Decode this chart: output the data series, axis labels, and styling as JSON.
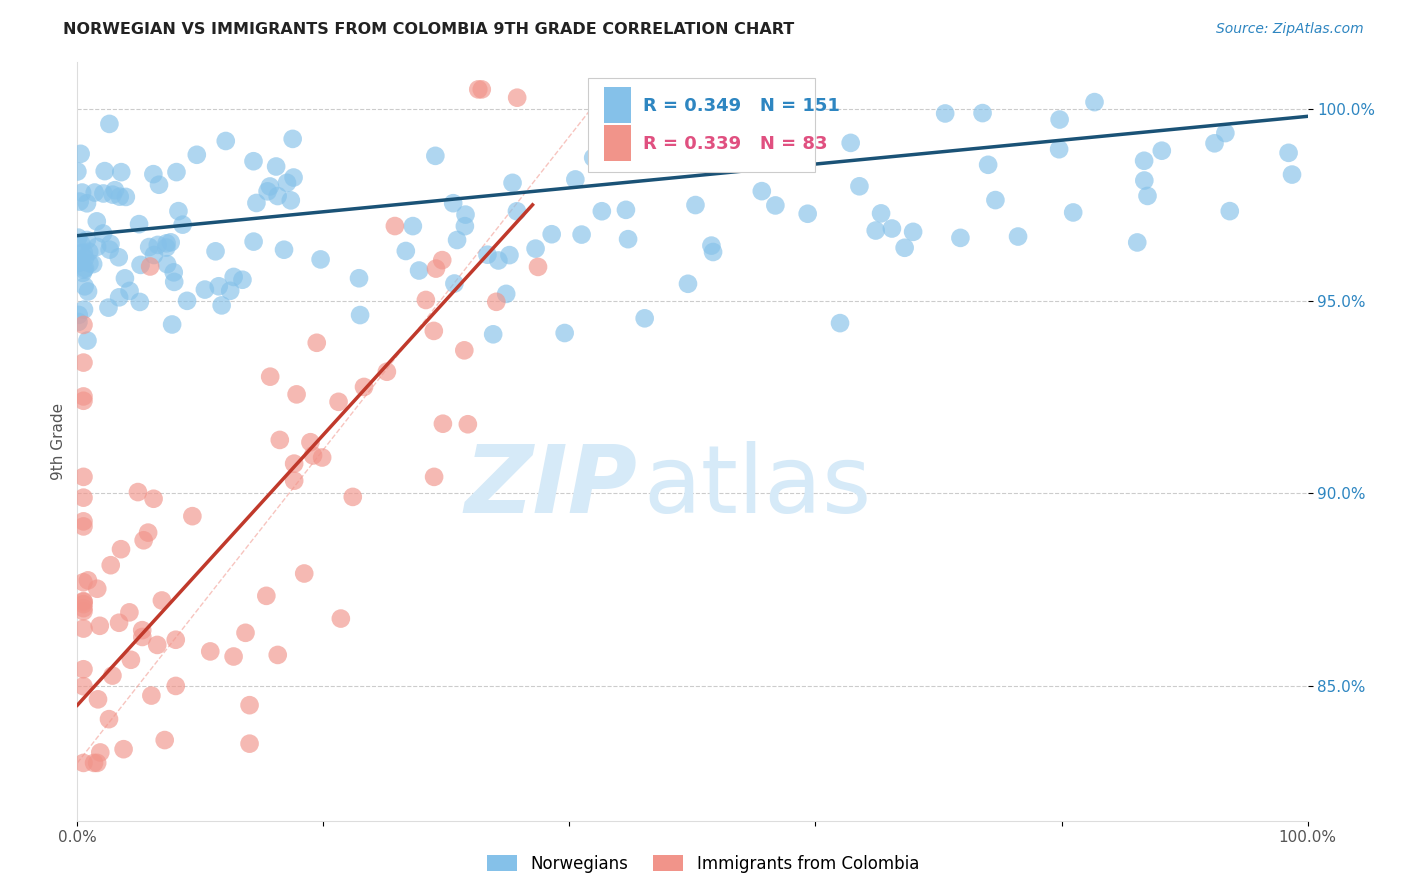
{
  "title": "NORWEGIAN VS IMMIGRANTS FROM COLOMBIA 9TH GRADE CORRELATION CHART",
  "source": "Source: ZipAtlas.com",
  "ylabel": "9th Grade",
  "ytick_values": [
    0.85,
    0.9,
    0.95,
    1.0
  ],
  "xlim": [
    0.0,
    1.0
  ],
  "ylim": [
    0.815,
    1.012
  ],
  "legend_r1": "R = 0.349",
  "legend_n1": "N = 151",
  "legend_r2": "R = 0.339",
  "legend_n2": "N = 83",
  "blue_color": "#85C1E9",
  "pink_color": "#F1948A",
  "blue_line_color": "#1A5276",
  "pink_line_color": "#C0392B",
  "watermark_color": "#D6EAF8",
  "grid_color": "#CCCCCC"
}
